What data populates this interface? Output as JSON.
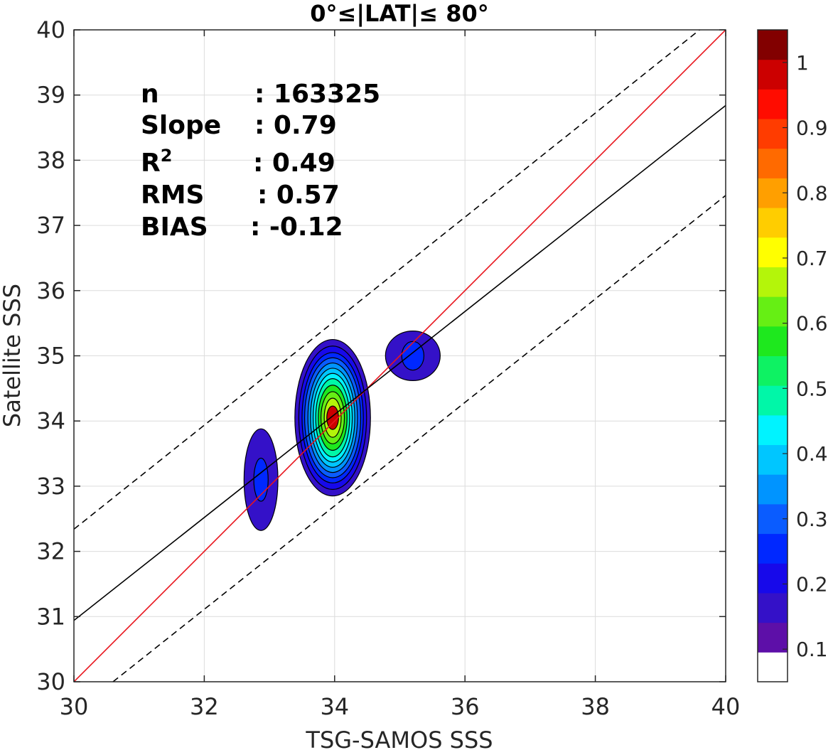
{
  "chart_data": {
    "type": "contour-scatter",
    "title": "0°≤|LAT|≤ 80°",
    "xlabel": "TSG-SAMOS SSS",
    "ylabel": "Satellite SSS",
    "xlim": [
      30,
      40
    ],
    "ylim": [
      30,
      40
    ],
    "xticks": [
      "30",
      "32",
      "34",
      "36",
      "38",
      "40"
    ],
    "yticks": [
      "30",
      "31",
      "32",
      "33",
      "34",
      "35",
      "36",
      "37",
      "38",
      "39",
      "40"
    ],
    "grid": true,
    "stats": [
      {
        "label": "n",
        "sep": ": ",
        "value": "163325"
      },
      {
        "label": "Slope",
        "sep": ": ",
        "value": "0.79"
      },
      {
        "label": "R",
        "sup": "2",
        "sep": ": ",
        "value": "0.49"
      },
      {
        "label": "RMS",
        "sep": ": ",
        "value": "0.57"
      },
      {
        "label": "BIAS",
        "sep": ": ",
        "value": "-0.12"
      }
    ],
    "lines": [
      {
        "role": "one-to-one",
        "color": "#e8141c",
        "style": "solid",
        "x": [
          30,
          40
        ],
        "y": [
          30,
          40
        ]
      },
      {
        "role": "regression",
        "color": "#000000",
        "style": "solid",
        "x": [
          30,
          40
        ],
        "y": [
          30.94,
          38.84
        ]
      },
      {
        "role": "upper-bound",
        "color": "#000000",
        "style": "dashed",
        "x": [
          30,
          39.6
        ],
        "y": [
          32.34,
          40
        ]
      },
      {
        "role": "lower-bound",
        "color": "#000000",
        "style": "dashed",
        "x": [
          30.6,
          40
        ],
        "y": [
          30,
          37.46
        ]
      }
    ],
    "clusters": [
      {
        "cx": 33.97,
        "cy": 34.05,
        "rx": [
          0.58,
          0.52,
          0.47,
          0.43,
          0.38,
          0.34,
          0.3,
          0.26,
          0.22,
          0.18,
          0.13,
          0.09
        ],
        "ry": [
          1.2,
          1.1,
          1.0,
          0.92,
          0.84,
          0.76,
          0.68,
          0.6,
          0.5,
          0.4,
          0.3,
          0.18
        ],
        "levels": [
          0.1,
          0.15,
          0.2,
          0.25,
          0.3,
          0.35,
          0.4,
          0.45,
          0.5,
          0.55,
          0.6,
          0.95
        ]
      },
      {
        "cx": 32.87,
        "cy": 33.1,
        "rx": [
          0.26,
          0.11
        ],
        "ry": [
          0.78,
          0.33
        ],
        "levels": [
          0.1,
          0.2
        ]
      },
      {
        "cx": 35.2,
        "cy": 35.0,
        "rx": [
          0.42,
          0.17
        ],
        "ry": [
          0.38,
          0.22
        ],
        "levels": [
          0.1,
          0.2
        ]
      }
    ],
    "colorbar": {
      "colors": [
        "#ffffff",
        "#5d0fa8",
        "#3411c8",
        "#1709ea",
        "#0028ff",
        "#0a5cff",
        "#0094ff",
        "#00c6ff",
        "#00f3ff",
        "#00f7a8",
        "#0ef263",
        "#1ee81e",
        "#66ef14",
        "#b4f50a",
        "#ffff00",
        "#ffcd00",
        "#ff9f00",
        "#ff6a00",
        "#ff3c00",
        "#ff0c00",
        "#cc0000",
        "#820000"
      ],
      "tick_values": [
        0.1,
        0.2,
        0.3,
        0.4,
        0.5,
        0.6,
        0.7,
        0.8,
        0.9,
        1.0
      ],
      "tick_labels": [
        "0.1",
        "0.2",
        "0.3",
        "0.4",
        "0.5",
        "0.6",
        "0.7",
        "0.8",
        "0.9",
        "1"
      ],
      "range": [
        0,
        1
      ]
    }
  }
}
